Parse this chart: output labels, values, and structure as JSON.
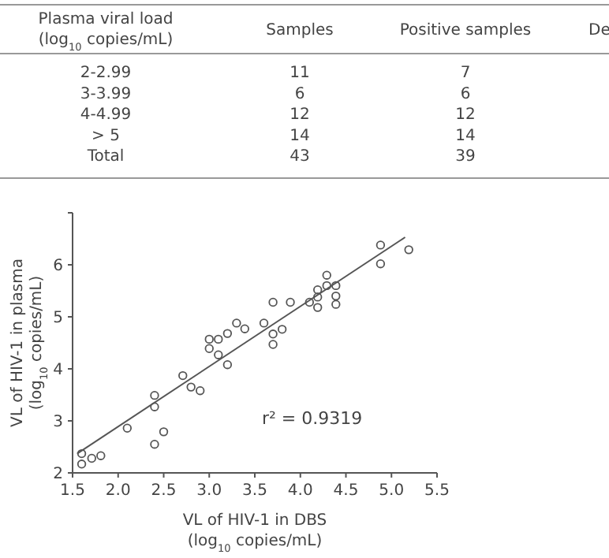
{
  "chart_data": [
    {
      "type": "other",
      "categories": [
        "Plasma viral load\n(log$_{10}$ copies/mL)",
        "Samples",
        "Positive samples",
        "De"
      ],
      "cell_labels": [
        [
          "2-2.99",
          "11",
          "7",
          null
        ],
        [
          "3-3.99",
          "6",
          "6",
          null
        ],
        [
          "4-4.99",
          "12",
          "12",
          null
        ],
        [
          "> 5",
          "14",
          "14",
          null
        ],
        [
          "Total",
          "43",
          "39",
          null
        ]
      ]
    },
    {
      "type": "scatter",
      "xlabel": "VL of HIV-1 in DBS\n(log$_{10}$ copies/mL)",
      "ylabel": "VL of HIV-1 in plasma\n(log$_{10}$ copies/mL)",
      "xlim": [
        1.5,
        5.5
      ],
      "xticks": [
        {
          "value": 1.5,
          "label": "1.5"
        },
        {
          "value": 2,
          "label": "2.0"
        },
        {
          "value": 2.5,
          "label": "2.5"
        },
        {
          "value": 3,
          "label": "3.0"
        },
        {
          "value": 3.5,
          "label": "3.5"
        },
        {
          "value": 4,
          "label": "4.0"
        },
        {
          "value": 4.5,
          "label": "4.5"
        },
        {
          "value": 5,
          "label": "5.0"
        },
        {
          "value": 5.5,
          "label": "5.5"
        }
      ],
      "ylim": [
        2,
        7
      ],
      "yticks": [
        2,
        3,
        4,
        5,
        6,
        {
          "value": 7,
          "label": null
        }
      ],
      "annotations": [
        "r² = 0.9319"
      ],
      "series": [
        {
          "type": "scatter",
          "color": "#555555",
          "marker": "circle",
          "x": [
            1.6,
            1.6,
            1.71,
            1.81,
            2.1,
            2.4,
            2.4,
            2.4,
            2.5,
            2.71,
            2.8,
            2.9,
            3.0,
            3.0,
            3.1,
            3.1,
            3.2,
            3.2,
            3.3,
            3.39,
            3.6,
            3.7,
            3.7,
            3.7,
            3.8,
            3.89,
            4.1,
            4.19,
            4.19,
            4.19,
            4.29,
            4.29,
            4.39,
            4.39,
            4.39,
            4.88,
            4.88,
            5.19
          ],
          "values": [
            2.37,
            2.17,
            2.28,
            2.33,
            2.86,
            3.49,
            3.27,
            2.55,
            2.79,
            3.87,
            3.65,
            3.58,
            4.57,
            4.39,
            4.57,
            4.27,
            4.68,
            4.08,
            4.88,
            4.77,
            4.88,
            5.28,
            4.67,
            4.47,
            4.76,
            5.28,
            5.28,
            5.52,
            5.38,
            5.18,
            5.8,
            5.6,
            5.6,
            5.4,
            5.24,
            6.38,
            6.02,
            6.29
          ]
        },
        {
          "type": "line",
          "color": "#555555",
          "x": [
            1.55,
            5.15
          ],
          "values": [
            2.37,
            6.53
          ]
        }
      ]
    }
  ]
}
